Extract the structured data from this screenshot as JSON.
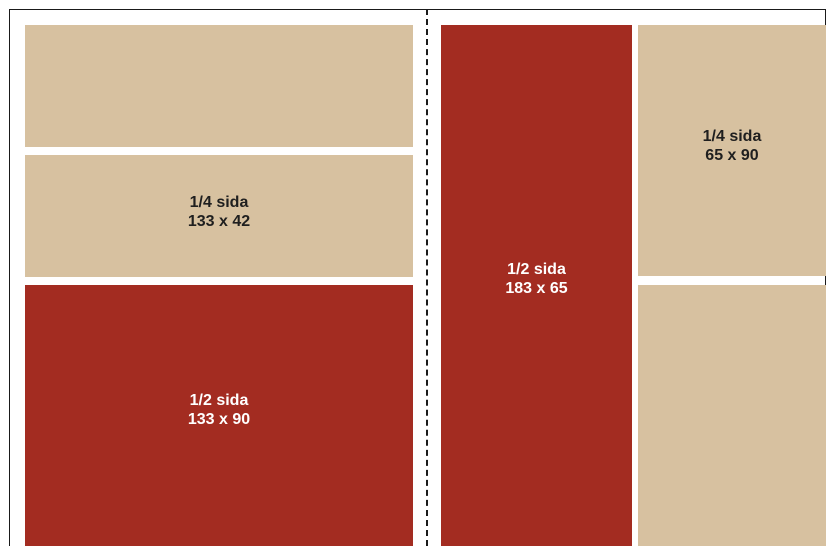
{
  "colors": {
    "beige": "#d7c1a0",
    "red": "#a32c21",
    "frame": "#1a1a1a"
  },
  "blocks": [
    {
      "id": "top-left-empty",
      "color": "beige",
      "title": "",
      "size": ""
    },
    {
      "id": "quarter-wide",
      "color": "beige",
      "title": "1/4 sida",
      "size": "133 x 42"
    },
    {
      "id": "half-wide",
      "color": "red",
      "title": "1/2 sida",
      "size": "133 x 90"
    },
    {
      "id": "half-tall",
      "color": "red",
      "title": "1/2 sida",
      "size": "183 x 65"
    },
    {
      "id": "quarter-tall",
      "color": "beige",
      "title": "1/4 sida",
      "size": "65 x 90"
    },
    {
      "id": "bottom-right-empty",
      "color": "beige",
      "title": "",
      "size": ""
    }
  ]
}
